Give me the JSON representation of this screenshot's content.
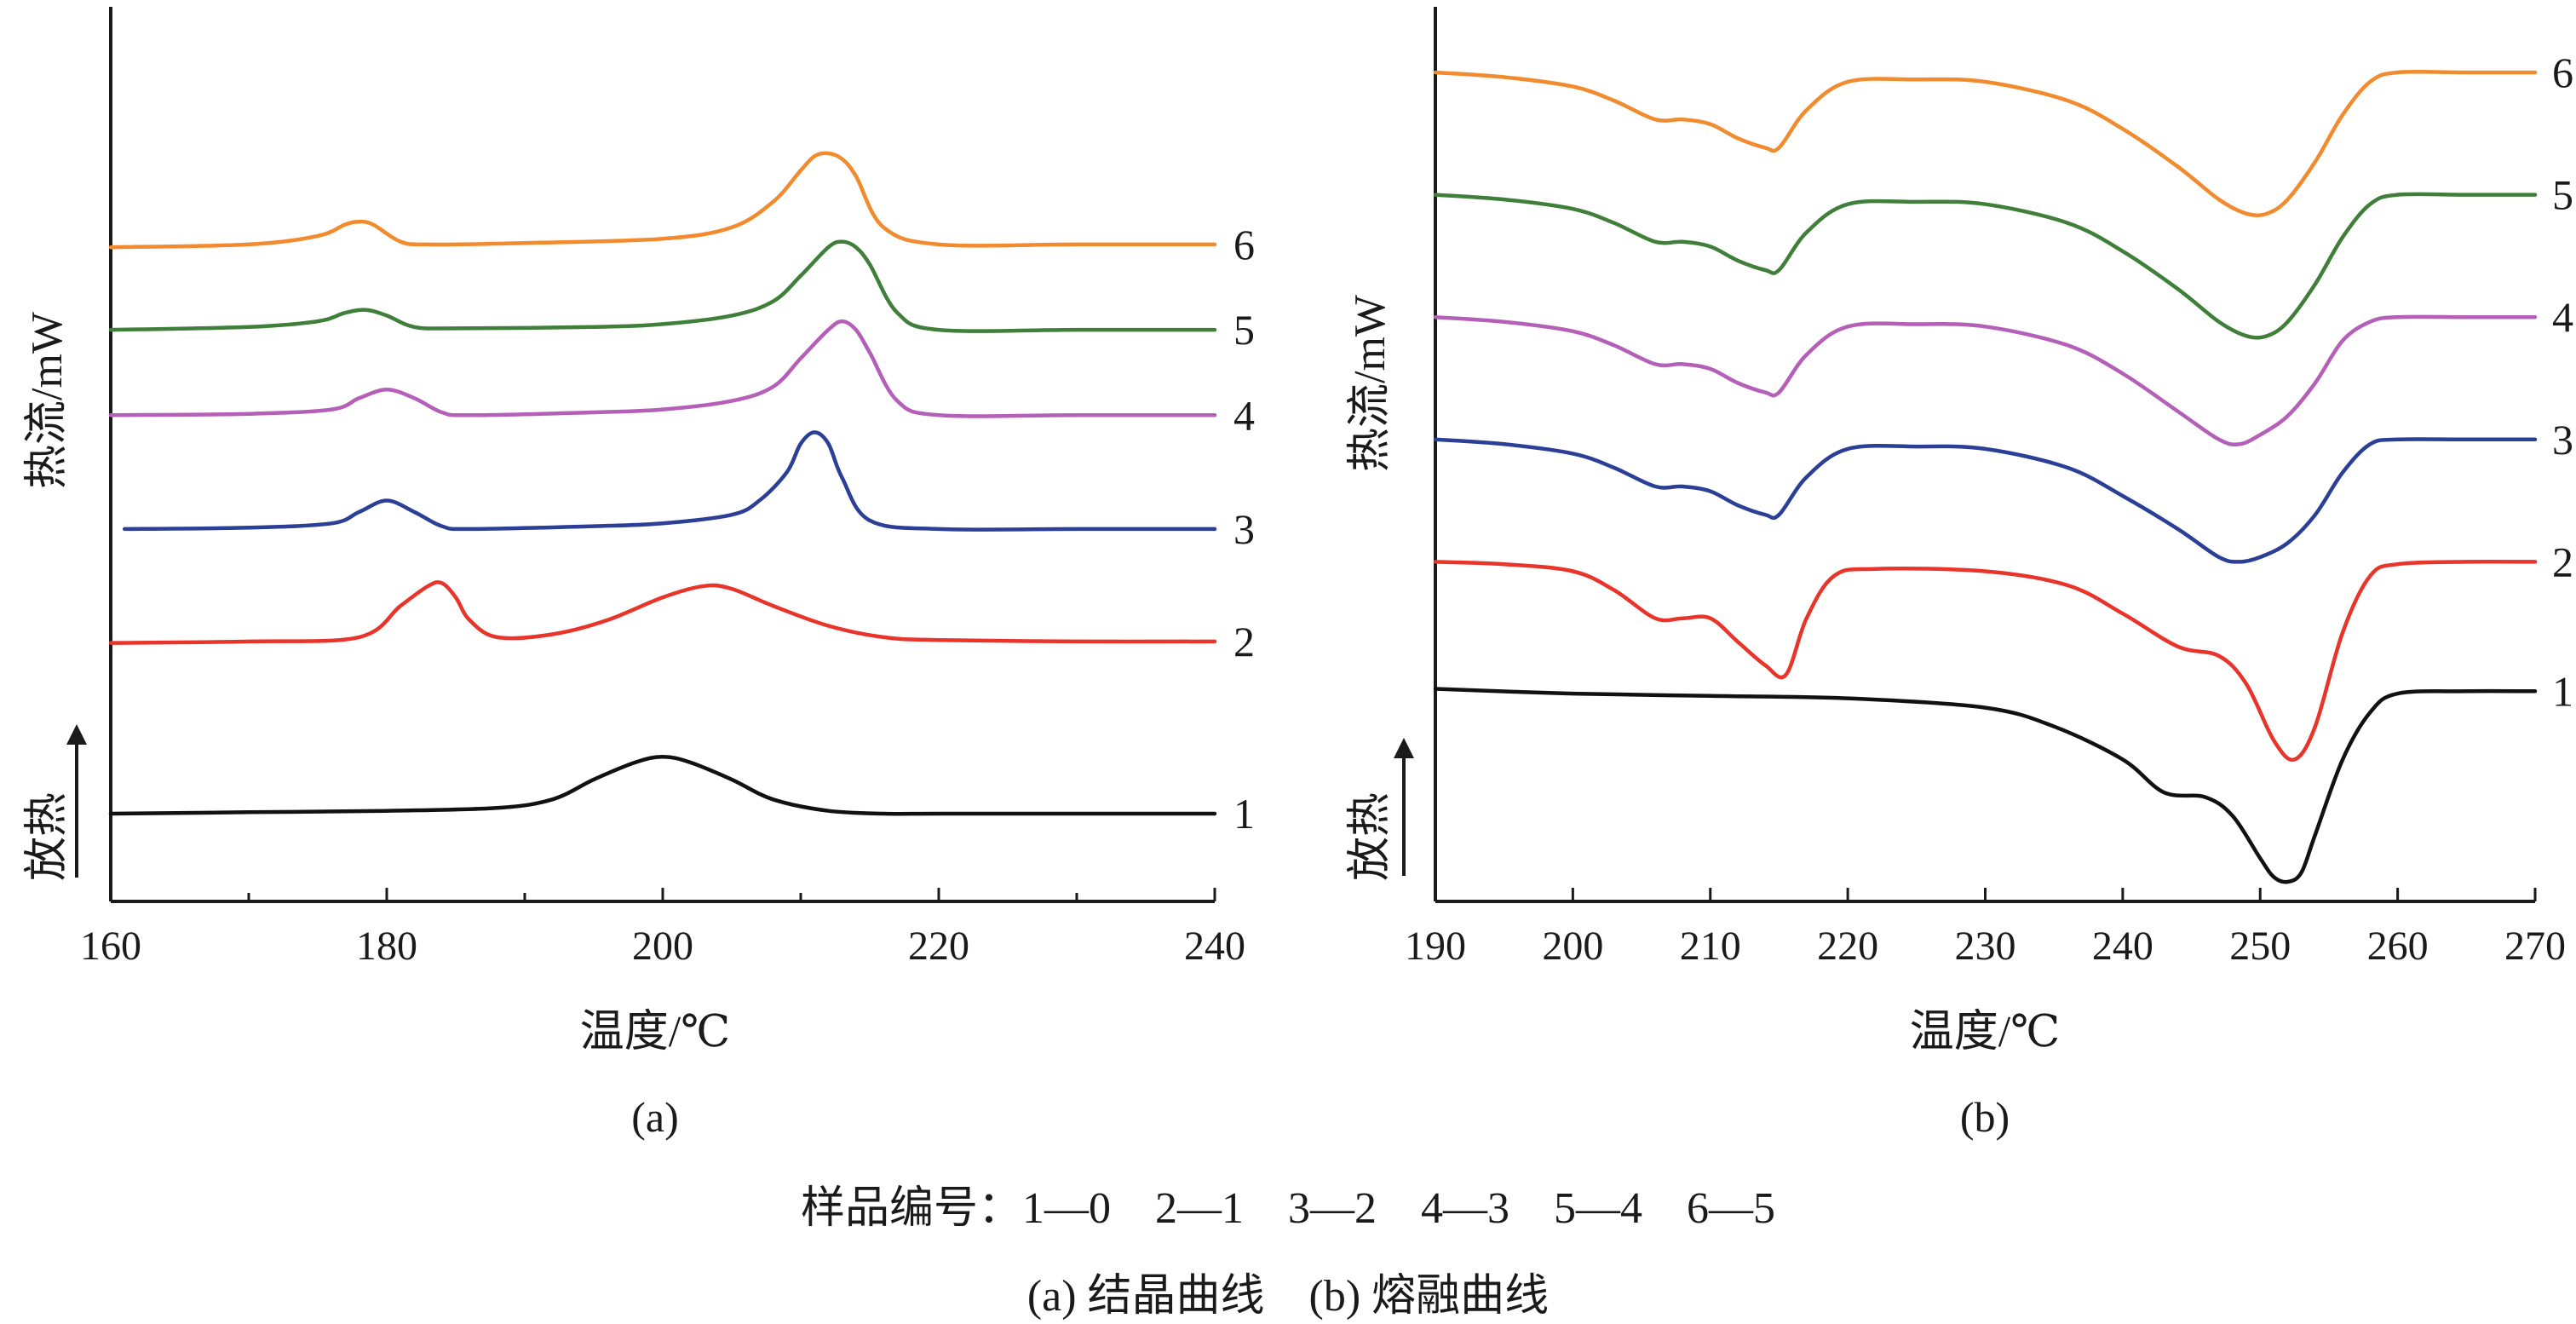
{
  "figure": {
    "legend_line": "样品编号：1—0　2—1　3—2　4—3　5—4　6—5",
    "caption_line": "(a) 结晶曲线　(b) 熔融曲线"
  },
  "chart_data": [
    {
      "type": "line",
      "panel": "(a)",
      "xlabel": "温度/℃",
      "ylabel": "热流/mW",
      "exo_label": "放热",
      "xlim": [
        160,
        240
      ],
      "x_ticks": [
        160,
        180,
        200,
        220,
        240
      ],
      "y_ticks": false,
      "grid": false,
      "series": [
        {
          "name": "1",
          "color": "#111111",
          "x": [
            160,
            170,
            180,
            188,
            192,
            195,
            198,
            200,
            202,
            205,
            208,
            212,
            216,
            220,
            230,
            240
          ],
          "y": [
            0.0,
            0.05,
            0.1,
            0.2,
            0.5,
            1.2,
            1.8,
            2.0,
            1.8,
            1.2,
            0.5,
            0.1,
            0.0,
            0.0,
            0.0,
            0.0
          ]
        },
        {
          "name": "2",
          "color": "#e8342a",
          "x": [
            160,
            170,
            178,
            181,
            183,
            184,
            185,
            186,
            188,
            192,
            196,
            200,
            203,
            205,
            208,
            212,
            216,
            220,
            230,
            240
          ],
          "y": [
            6.0,
            6.05,
            6.2,
            7.3,
            8.0,
            8.1,
            7.6,
            6.8,
            6.2,
            6.3,
            6.8,
            7.6,
            8.0,
            7.9,
            7.3,
            6.6,
            6.2,
            6.1,
            6.05,
            6.05
          ]
        },
        {
          "name": "3",
          "color": "#2c3f97",
          "x": [
            161,
            170,
            176,
            178,
            180,
            182,
            184,
            186,
            195,
            200,
            205,
            207,
            209,
            210,
            211,
            212,
            213,
            215,
            220,
            230,
            240
          ],
          "y": [
            10.0,
            10.05,
            10.2,
            10.6,
            11.0,
            10.6,
            10.1,
            10.0,
            10.1,
            10.2,
            10.5,
            11.0,
            12.0,
            13.0,
            13.4,
            13.0,
            11.8,
            10.3,
            10.0,
            10.0,
            10.0
          ]
        },
        {
          "name": "4",
          "color": "#b45fb8",
          "x": [
            160,
            170,
            176,
            178,
            180,
            182,
            184,
            186,
            195,
            200,
            205,
            208,
            210,
            212,
            213,
            214,
            215,
            217,
            220,
            230,
            240
          ],
          "y": [
            14.0,
            14.05,
            14.2,
            14.6,
            14.9,
            14.6,
            14.1,
            14.0,
            14.1,
            14.2,
            14.5,
            15.0,
            16.0,
            17.0,
            17.3,
            17.0,
            16.2,
            14.5,
            14.0,
            14.0,
            14.0
          ]
        },
        {
          "name": "5",
          "color": "#3f7f3a",
          "x": [
            160,
            170,
            175,
            177,
            178.5,
            180,
            182,
            185,
            195,
            200,
            205,
            208,
            210,
            212,
            213,
            214,
            215,
            217,
            220,
            230,
            240
          ],
          "y": [
            17.0,
            17.1,
            17.3,
            17.6,
            17.7,
            17.5,
            17.1,
            17.05,
            17.1,
            17.2,
            17.5,
            18.0,
            18.9,
            19.9,
            20.1,
            19.9,
            19.3,
            17.6,
            17.0,
            17.0,
            17.0
          ]
        },
        {
          "name": "6",
          "color": "#f28a2e",
          "x": [
            160,
            170,
            175,
            177,
            178,
            179,
            181,
            183,
            190,
            200,
            205,
            208,
            210,
            211,
            212,
            213,
            214,
            216,
            220,
            230,
            240
          ],
          "y": [
            19.9,
            20.0,
            20.3,
            20.7,
            20.8,
            20.7,
            20.1,
            20.0,
            20.05,
            20.2,
            20.6,
            21.5,
            22.6,
            23.1,
            23.2,
            23.0,
            22.4,
            20.6,
            20.0,
            20.0,
            20.0
          ]
        }
      ],
      "curve_labels": [
        "1",
        "2",
        "3",
        "4",
        "5",
        "6"
      ]
    },
    {
      "type": "line",
      "panel": "(b)",
      "xlabel": "温度/℃",
      "ylabel": "热流/mW",
      "exo_label": "放热",
      "xlim": [
        190,
        270
      ],
      "x_ticks": [
        190,
        200,
        210,
        220,
        230,
        240,
        250,
        260,
        270
      ],
      "y_ticks": false,
      "grid": false,
      "series": [
        {
          "name": "1",
          "color": "#111111",
          "x": [
            190,
            200,
            210,
            220,
            230,
            235,
            240,
            243,
            246,
            248,
            250,
            251,
            252,
            253,
            254,
            256,
            258,
            260,
            265,
            270
          ],
          "y": [
            7.3,
            7.2,
            7.15,
            7.1,
            6.9,
            6.5,
            5.8,
            5.1,
            5.0,
            4.6,
            3.7,
            3.3,
            3.2,
            3.4,
            4.2,
            5.8,
            6.8,
            7.2,
            7.25,
            7.25
          ]
        },
        {
          "name": "2",
          "color": "#e8342a",
          "x": [
            190,
            195,
            200,
            203,
            206,
            208,
            210,
            212,
            214,
            215.5,
            217,
            219,
            222,
            230,
            236,
            240,
            244,
            247,
            249,
            251,
            252.5,
            254,
            256,
            258,
            260,
            265,
            270
          ],
          "y": [
            10.0,
            9.95,
            9.8,
            9.4,
            8.8,
            8.8,
            8.8,
            8.3,
            7.8,
            7.6,
            8.8,
            9.7,
            9.85,
            9.8,
            9.5,
            8.9,
            8.2,
            8.0,
            7.4,
            6.2,
            5.8,
            6.5,
            8.5,
            9.7,
            9.95,
            10.0,
            10.0
          ]
        },
        {
          "name": "3",
          "color": "#2c3f97",
          "x": [
            190,
            195,
            200,
            203,
            206,
            208,
            210,
            212,
            214,
            215,
            217,
            220,
            225,
            230,
            236,
            240,
            244,
            247,
            248.5,
            250,
            252,
            254,
            256,
            258,
            260,
            265,
            270
          ],
          "y": [
            12.6,
            12.5,
            12.3,
            12.0,
            11.6,
            11.6,
            11.5,
            11.2,
            11.0,
            11.0,
            11.8,
            12.4,
            12.45,
            12.4,
            12.0,
            11.4,
            10.7,
            10.1,
            10.0,
            10.1,
            10.4,
            11.0,
            11.9,
            12.5,
            12.6,
            12.6,
            12.6
          ]
        },
        {
          "name": "4",
          "color": "#b45fb8",
          "x": [
            190,
            195,
            200,
            203,
            206,
            208,
            210,
            212,
            214,
            215,
            217,
            220,
            225,
            230,
            236,
            240,
            244,
            247,
            248.5,
            250,
            252,
            254,
            256,
            258,
            260,
            265,
            270
          ],
          "y": [
            15.2,
            15.1,
            14.9,
            14.6,
            14.2,
            14.2,
            14.1,
            13.8,
            13.6,
            13.6,
            14.4,
            15.0,
            15.05,
            15.0,
            14.6,
            14.0,
            13.2,
            12.6,
            12.5,
            12.7,
            13.1,
            13.8,
            14.7,
            15.1,
            15.2,
            15.2,
            15.2
          ]
        },
        {
          "name": "5",
          "color": "#3f7f3a",
          "x": [
            190,
            195,
            200,
            203,
            206,
            208,
            210,
            212,
            214,
            215,
            217,
            220,
            225,
            230,
            236,
            240,
            244,
            247,
            249,
            250.5,
            252,
            254,
            256,
            258,
            260,
            265,
            270
          ],
          "y": [
            17.8,
            17.7,
            17.5,
            17.2,
            16.8,
            16.8,
            16.7,
            16.4,
            16.2,
            16.2,
            17.0,
            17.6,
            17.65,
            17.6,
            17.2,
            16.6,
            15.8,
            15.1,
            14.8,
            14.8,
            15.1,
            15.9,
            16.9,
            17.6,
            17.8,
            17.8,
            17.8
          ]
        },
        {
          "name": "6",
          "color": "#f28a2e",
          "x": [
            190,
            195,
            200,
            203,
            206,
            208,
            210,
            212,
            214,
            215,
            217,
            220,
            225,
            230,
            236,
            240,
            244,
            247,
            249,
            250.5,
            252,
            254,
            256,
            258,
            260,
            265,
            270
          ],
          "y": [
            20.4,
            20.3,
            20.1,
            19.8,
            19.4,
            19.4,
            19.3,
            19.0,
            18.8,
            18.8,
            19.6,
            20.2,
            20.25,
            20.2,
            19.8,
            19.2,
            18.4,
            17.7,
            17.4,
            17.4,
            17.7,
            18.5,
            19.5,
            20.2,
            20.4,
            20.4,
            20.4
          ]
        }
      ],
      "curve_labels": [
        "1",
        "2",
        "3",
        "4",
        "5",
        "6"
      ]
    }
  ]
}
